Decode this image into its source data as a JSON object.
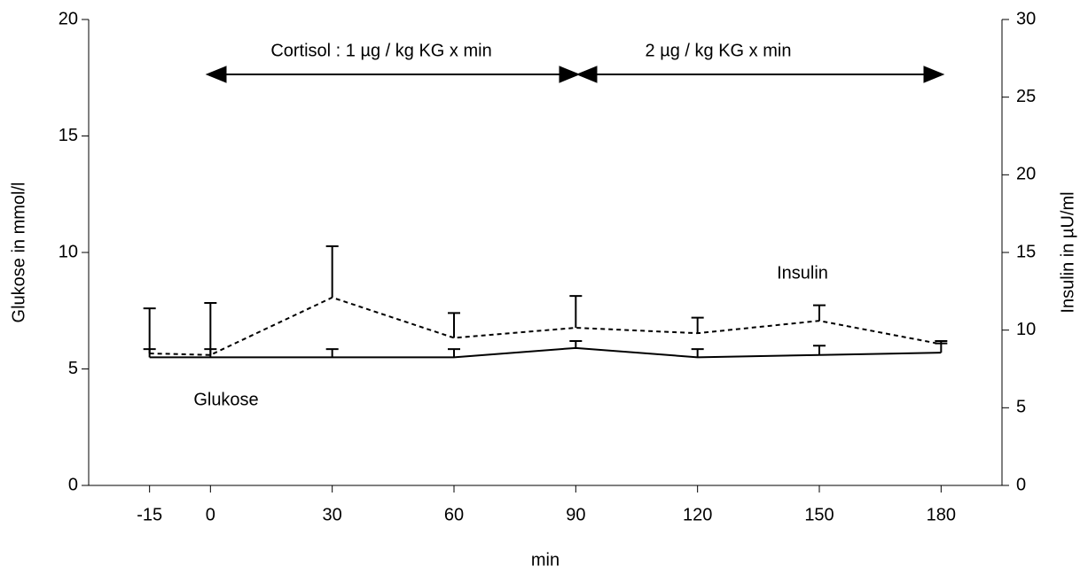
{
  "chart_data": {
    "type": "line",
    "x": [
      -15,
      0,
      30,
      60,
      90,
      120,
      150,
      180
    ],
    "xlim": [
      -30,
      195
    ],
    "xticks": [
      -15,
      0,
      30,
      60,
      90,
      120,
      150,
      180
    ],
    "xlabel": "min",
    "ylabel": "Glukose in mmol/l",
    "y2label": "Insulin in µU/ml",
    "ylim": [
      0,
      20
    ],
    "yticks": [
      0,
      5,
      10,
      15,
      20
    ],
    "y2lim": [
      0,
      30
    ],
    "y2ticks": [
      0,
      5,
      10,
      15,
      20,
      25,
      30
    ],
    "annotations": [
      "Cortisol :  1 µg / kg KG x min",
      "2 µg / kg KG x min"
    ],
    "series": [
      {
        "name": "Glukose",
        "color": "#000000",
        "dash": false,
        "values": [
          5.5,
          5.5,
          5.5,
          5.5,
          5.9,
          5.5,
          5.6,
          5.7
        ],
        "errors": [
          0.35,
          0.35,
          0.35,
          0.35,
          0.3,
          0.35,
          0.4,
          0.4
        ]
      },
      {
        "name": "Insulin",
        "color": "#000000",
        "dash": true,
        "axis": "y2",
        "values": [
          8.5,
          8.4,
          12.1,
          9.5,
          10.15,
          9.8,
          10.6,
          9.1
        ],
        "errors": [
          2.9,
          3.35,
          3.3,
          1.6,
          2.05,
          1.0,
          1.0,
          0.2
        ]
      }
    ]
  }
}
